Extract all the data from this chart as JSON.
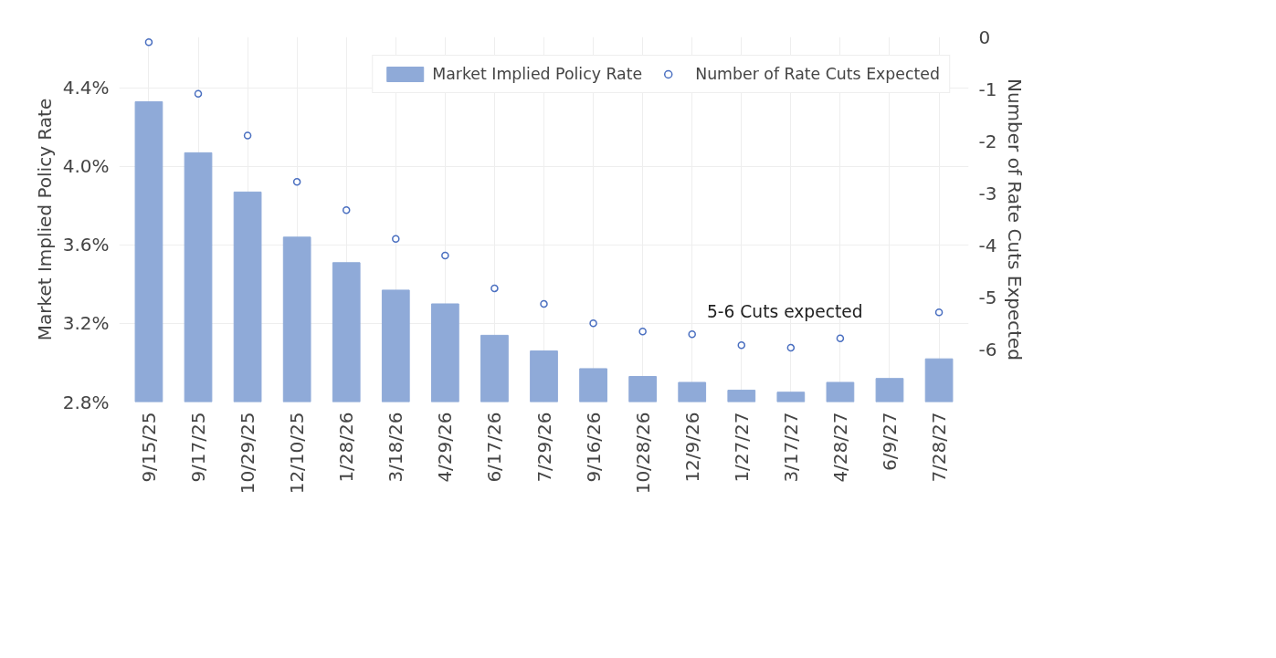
{
  "chart_data": {
    "type": "bar",
    "ylabel": "Market Implied Policy Rate",
    "y2label": "Number of Rate Cuts Expected",
    "categories": [
      "9/15/25",
      "9/17/25",
      "10/29/25",
      "12/10/25",
      "1/28/26",
      "3/18/26",
      "4/29/26",
      "6/17/26",
      "7/29/26",
      "9/16/26",
      "10/28/26",
      "12/9/26",
      "1/27/27",
      "3/17/27",
      "4/28/27",
      "6/9/27",
      "7/28/27"
    ],
    "series": [
      {
        "name": "Market Implied Policy Rate",
        "color": "#8faad8",
        "values": [
          4.33,
          4.07,
          3.87,
          3.64,
          3.51,
          3.37,
          3.3,
          3.14,
          3.06,
          2.97,
          2.93,
          2.9,
          2.86,
          2.85,
          2.9,
          2.92,
          3.02
        ]
      },
      {
        "name": "Number of Rate Cuts Expected",
        "type": "scatter",
        "axis": "y2",
        "marker": "circle",
        "color": "#4a6fc0",
        "values": [
          -0.1,
          -1.09,
          -1.89,
          -2.78,
          -3.32,
          -3.87,
          -4.19,
          -4.82,
          -5.12,
          -5.49,
          -5.65,
          -5.7,
          -5.91,
          -5.96,
          -5.78,
          null,
          -5.28
        ]
      }
    ],
    "ylim": [
      2.8,
      4.66
    ],
    "yticks": [
      {
        "value": 2.8,
        "label": "2.8%"
      },
      {
        "value": 3.2,
        "label": "3.2%"
      },
      {
        "value": 3.6,
        "label": "3.6%"
      },
      {
        "value": 4.0,
        "label": "4.0%"
      },
      {
        "value": 4.4,
        "label": "4.4%"
      }
    ],
    "y2lim": [
      -7,
      0
    ],
    "y2ticks": [
      -6,
      -5,
      -4,
      -3,
      -2,
      -1,
      0
    ],
    "annotations": [
      "5-6 Cuts expected"
    ],
    "grid": true,
    "legend": "top right"
  }
}
